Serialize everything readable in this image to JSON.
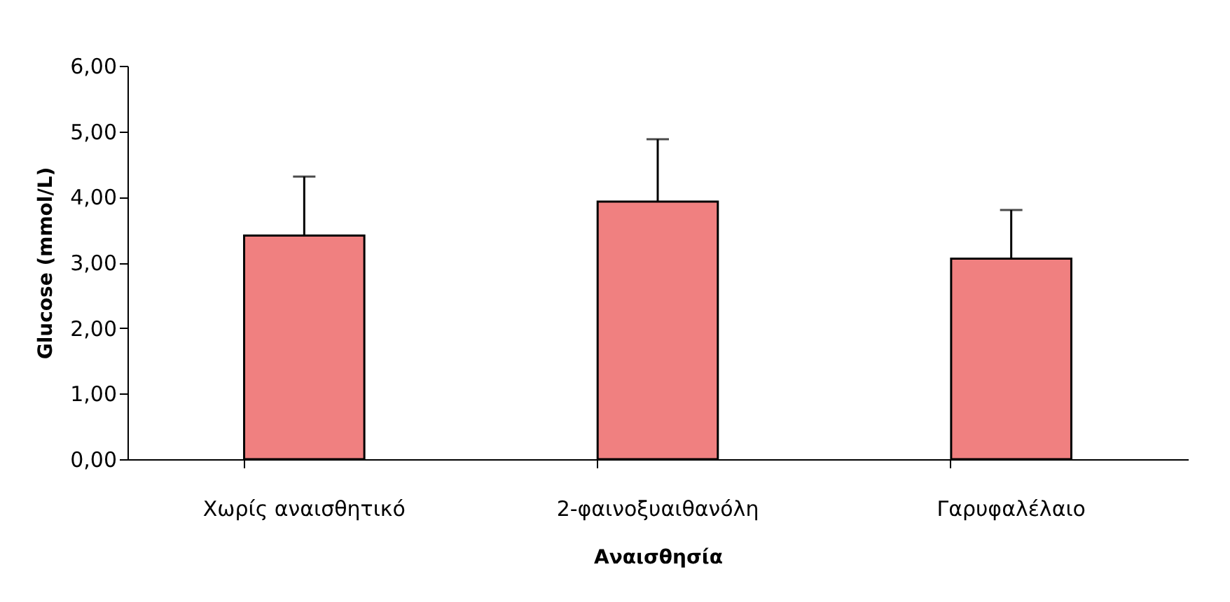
{
  "chart_data": {
    "type": "bar",
    "xlabel": "Αναισθησία",
    "ylabel": "Glucose (mmol/L)",
    "categories": [
      "Χωρίς αναισθητικό",
      "2-φαινοξυαιθανόλη",
      "Γαρυφαλέλαιο"
    ],
    "values": [
      3.41,
      3.93,
      3.06
    ],
    "errors": [
      [
        3.41,
        4.31
      ],
      [
        3.93,
        4.88
      ],
      [
        3.06,
        3.8
      ]
    ],
    "color": "#f08080",
    "ylim": [
      0,
      6
    ],
    "yticks": [
      {
        "value": 0,
        "label": "0,00"
      },
      {
        "value": 1,
        "label": "1,00"
      },
      {
        "value": 2,
        "label": "2,00"
      },
      {
        "value": 3,
        "label": "3,00"
      },
      {
        "value": 4,
        "label": "4,00"
      },
      {
        "value": 5,
        "label": "5,00"
      },
      {
        "value": 6,
        "label": "6,00"
      }
    ],
    "grid": false
  }
}
